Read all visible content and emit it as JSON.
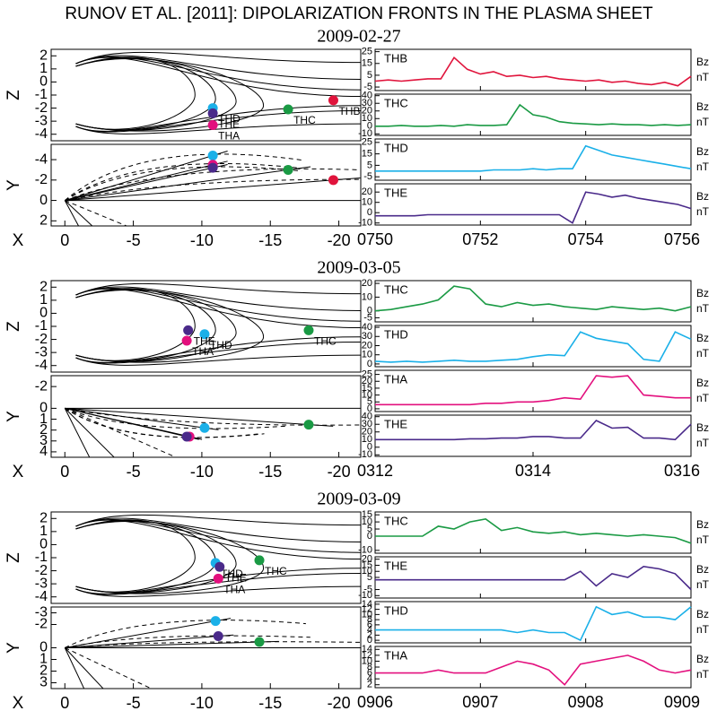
{
  "title": "RUNOV ET AL. [2011]: DIPOLARIZATION FRONTS IN THE PLASMA SHEET",
  "events": [
    {
      "date": "2009-02-27",
      "orbit_xz": {
        "type": "scatter",
        "ylabel": "Z",
        "xlim": [
          1,
          -21.6
        ],
        "ylim": [
          -4.5,
          2.5
        ],
        "yticks": [
          2,
          1,
          0,
          -1,
          -2,
          -3,
          -4
        ],
        "points": [
          {
            "name": "THB",
            "color": "#e0143c",
            "x": -19.6,
            "y": -1.4
          },
          {
            "name": "THC",
            "color": "#1a9a44",
            "x": -16.3,
            "y": -2.1
          },
          {
            "name": "THD",
            "color": "#1ab0e8",
            "x": -10.8,
            "y": -2.0
          },
          {
            "name": "THE",
            "color": "#4a2a8a",
            "x": -10.8,
            "y": -2.4
          },
          {
            "name": "THA",
            "color": "#e3107e",
            "x": -10.8,
            "y": -3.3
          }
        ]
      },
      "orbit_xy": {
        "type": "scatter",
        "ylabel": "Y",
        "xlabel": "X",
        "xlim": [
          1,
          -21.6
        ],
        "ylim": [
          2.5,
          -5.5
        ],
        "yticks": [
          -4,
          -2,
          0,
          2
        ],
        "xticks": [
          0,
          -5,
          -10,
          -15,
          -20
        ],
        "points": [
          {
            "color": "#1ab0e8",
            "x": -10.8,
            "y": -4.4
          },
          {
            "color": "#e3107e",
            "x": -10.8,
            "y": -3.5
          },
          {
            "color": "#4a2a8a",
            "x": -10.8,
            "y": -3.2
          },
          {
            "color": "#1a9a44",
            "x": -16.3,
            "y": -3.0
          },
          {
            "color": "#e0143c",
            "x": -19.6,
            "y": -2.0
          }
        ]
      },
      "timeseries": {
        "type": "line",
        "ylabel": "Bz",
        "yunit": "nT",
        "xlim": [
          470,
          476
        ],
        "xticks": [
          {
            "value": 470,
            "label": "0750"
          },
          {
            "value": 472,
            "label": "0752"
          },
          {
            "value": 474,
            "label": "0754"
          },
          {
            "value": 476,
            "label": "0756"
          }
        ],
        "x": [
          470,
          470.25,
          470.5,
          470.75,
          471,
          471.25,
          471.5,
          471.75,
          472,
          472.25,
          472.5,
          472.75,
          473,
          473.25,
          473.5,
          473.75,
          474,
          474.25,
          474.5,
          474.75,
          475,
          475.25,
          475.5,
          475.75,
          476
        ],
        "series": [
          {
            "name": "THB",
            "color": "#e0143c",
            "ylim": [
              -8,
              27
            ],
            "yticks": [
              -5,
              5,
              15,
              25
            ],
            "values": [
              0,
              1,
              0,
              1,
              2,
              2,
              20,
              10,
              6,
              8,
              4,
              5,
              3,
              4,
              2,
              1,
              0,
              1,
              -1,
              0,
              -2,
              -3,
              -1,
              -4,
              4
            ]
          },
          {
            "name": "THC",
            "color": "#1a9a44",
            "ylim": [
              -12,
              42
            ],
            "yticks": [
              -10,
              0,
              10,
              20,
              30,
              40
            ],
            "values": [
              0,
              0,
              1,
              0,
              0,
              1,
              0,
              2,
              1,
              1,
              2,
              28,
              15,
              12,
              6,
              4,
              3,
              2,
              3,
              2,
              2,
              1,
              2,
              1,
              2
            ]
          },
          {
            "name": "THD",
            "color": "#1ab0e8",
            "ylim": [
              -8,
              28
            ],
            "yticks": [
              -5,
              5,
              15,
              25
            ],
            "values": [
              0,
              0,
              0,
              0,
              0,
              0,
              0,
              0,
              0,
              1,
              1,
              1,
              2,
              1,
              2,
              2,
              22,
              18,
              14,
              12,
              10,
              8,
              6,
              4,
              2
            ]
          },
          {
            "name": "THE",
            "color": "#4a2a8a",
            "ylim": [
              -12,
              28
            ],
            "yticks": [
              -10,
              0,
              10,
              20
            ],
            "values": [
              -3,
              -3,
              -3,
              -3,
              -2,
              -2,
              -2,
              -2,
              -2,
              -2,
              -2,
              -2,
              -2,
              -2,
              -2,
              -10,
              20,
              18,
              15,
              17,
              14,
              12,
              10,
              8,
              4
            ]
          }
        ]
      }
    },
    {
      "date": "2009-03-05",
      "orbit_xz": {
        "type": "scatter",
        "ylabel": "Z",
        "xlim": [
          1,
          -21.6
        ],
        "ylim": [
          -4.5,
          2.5
        ],
        "yticks": [
          2,
          1,
          0,
          -1,
          -2,
          -3,
          -4
        ],
        "points": [
          {
            "name": "THC",
            "color": "#1a9a44",
            "x": -17.8,
            "y": -1.3
          },
          {
            "name": "THD",
            "color": "#1ab0e8",
            "x": -10.2,
            "y": -1.6
          },
          {
            "name": "THE",
            "color": "#4a2a8a",
            "x": -9,
            "y": -1.3
          },
          {
            "name": "THA",
            "color": "#e3107e",
            "x": -8.9,
            "y": -2.1
          }
        ]
      },
      "orbit_xy": {
        "type": "scatter",
        "ylabel": "Y",
        "xlabel": "X",
        "xlim": [
          1,
          -21.6
        ],
        "ylim": [
          4.5,
          -3
        ],
        "yticks": [
          -2,
          0,
          1,
          2,
          3,
          4
        ],
        "xticks": [
          0,
          -5,
          -10,
          -15,
          -20
        ],
        "points": [
          {
            "color": "#1a9a44",
            "x": -17.8,
            "y": 1.5
          },
          {
            "color": "#1ab0e8",
            "x": -10.2,
            "y": 1.8
          },
          {
            "color": "#e3107e",
            "x": -9.1,
            "y": 2.6
          },
          {
            "color": "#4a2a8a",
            "x": -8.9,
            "y": 2.6
          }
        ]
      },
      "timeseries": {
        "type": "line",
        "ylabel": "Bz",
        "yunit": "nT",
        "xlim": [
          192,
          196
        ],
        "xticks": [
          {
            "value": 192,
            "label": "0312"
          },
          {
            "value": 194,
            "label": "0314"
          },
          {
            "value": 196,
            "label": "0316"
          }
        ],
        "x": [
          192,
          192.2,
          192.4,
          192.6,
          192.8,
          193,
          193.2,
          193.4,
          193.6,
          193.8,
          194,
          194.2,
          194.4,
          194.6,
          194.8,
          195,
          195.2,
          195.4,
          195.6,
          195.8,
          196
        ],
        "series": [
          {
            "name": "THC",
            "color": "#1a9a44",
            "ylim": [
              -8,
              22
            ],
            "yticks": [
              -5,
              0,
              10,
              20
            ],
            "values": [
              0,
              1,
              3,
              5,
              8,
              18,
              16,
              5,
              3,
              6,
              4,
              5,
              3,
              2,
              1,
              3,
              2,
              1,
              2,
              0,
              3
            ]
          },
          {
            "name": "THD",
            "color": "#1ab0e8",
            "ylim": [
              -3,
              42
            ],
            "yticks": [
              0,
              10,
              20,
              30,
              40
            ],
            "values": [
              3,
              2,
              3,
              2,
              3,
              4,
              3,
              3,
              4,
              5,
              8,
              10,
              9,
              35,
              28,
              25,
              22,
              5,
              3,
              35,
              27
            ]
          },
          {
            "name": "THA",
            "color": "#e3107e",
            "ylim": [
              -2,
              28
            ],
            "yticks": [
              0,
              5,
              10,
              15,
              20,
              25
            ],
            "values": [
              3,
              3,
              3,
              3,
              3,
              3,
              3,
              4,
              4,
              5,
              5,
              6,
              8,
              7,
              24,
              23,
              24,
              10,
              9,
              8,
              8
            ]
          },
          {
            "name": "THE",
            "color": "#4a2a8a",
            "ylim": [
              -12,
              42
            ],
            "yticks": [
              -10,
              0,
              10,
              20,
              30,
              40
            ],
            "values": [
              10,
              10,
              10,
              10,
              10,
              10,
              11,
              11,
              12,
              12,
              14,
              14,
              12,
              12,
              35,
              25,
              26,
              12,
              12,
              10,
              30
            ]
          }
        ]
      }
    },
    {
      "date": "2009-03-09",
      "orbit_xz": {
        "type": "scatter",
        "ylabel": "Z",
        "xlim": [
          1,
          -21.6
        ],
        "ylim": [
          -4.5,
          2.5
        ],
        "yticks": [
          2,
          1,
          0,
          -1,
          -2,
          -3,
          -4
        ],
        "points": [
          {
            "name": "THC",
            "color": "#1a9a44",
            "x": -14.2,
            "y": -1.2
          },
          {
            "name": "THD",
            "color": "#1ab0e8",
            "x": -11,
            "y": -1.4
          },
          {
            "name": "THE",
            "color": "#4a2a8a",
            "x": -11.3,
            "y": -1.7
          },
          {
            "name": "THA",
            "color": "#e3107e",
            "x": -11.2,
            "y": -2.6
          }
        ]
      },
      "orbit_xy": {
        "type": "scatter",
        "ylabel": "Y",
        "xlabel": "X",
        "xlim": [
          1,
          -21.6
        ],
        "ylim": [
          3.5,
          -3.5
        ],
        "yticks": [
          -3,
          -2,
          0,
          1,
          2,
          3
        ],
        "xticks": [
          0,
          -5,
          -10,
          -15,
          -20
        ],
        "points": [
          {
            "color": "#1ab0e8",
            "x": -11,
            "y": -2.3
          },
          {
            "color": "#4a2a8a",
            "x": -11.2,
            "y": -1
          },
          {
            "color": "#1a9a44",
            "x": -14.2,
            "y": -0.5
          }
        ]
      },
      "timeseries": {
        "type": "line",
        "ylabel": "Bz",
        "yunit": "nT",
        "xlim": [
          546,
          549
        ],
        "xticks": [
          {
            "value": 546,
            "label": "0906"
          },
          {
            "value": 547,
            "label": "0907"
          },
          {
            "value": 548,
            "label": "0908"
          },
          {
            "value": 549,
            "label": "0909"
          }
        ],
        "x": [
          546,
          546.15,
          546.3,
          546.45,
          546.6,
          546.75,
          546.9,
          547.05,
          547.2,
          547.35,
          547.5,
          547.65,
          547.8,
          547.95,
          548.1,
          548.25,
          548.4,
          548.55,
          548.7,
          548.85,
          549
        ],
        "series": [
          {
            "name": "THC",
            "color": "#1a9a44",
            "ylim": [
              -12,
              17
            ],
            "yticks": [
              -10,
              0,
              5,
              10,
              15
            ],
            "values": [
              0,
              0,
              0,
              0,
              7,
              5,
              10,
              12,
              4,
              6,
              3,
              2,
              3,
              1,
              2,
              1,
              0,
              1,
              0,
              -1,
              -5
            ]
          },
          {
            "name": "THE",
            "color": "#4a2a8a",
            "ylim": [
              -12,
              22
            ],
            "yticks": [
              -10,
              -5,
              5,
              10,
              15,
              20
            ],
            "values": [
              3,
              3,
              3,
              3,
              3,
              3,
              3,
              3,
              3,
              3,
              3,
              3,
              3,
              10,
              -2,
              8,
              5,
              14,
              12,
              8,
              -5
            ]
          },
          {
            "name": "THD",
            "color": "#1ab0e8",
            "ylim": [
              -1,
              15
            ],
            "yticks": [
              0,
              2,
              4,
              6,
              8,
              10,
              12,
              14
            ],
            "values": [
              4,
              4,
              4,
              4,
              4,
              4,
              4,
              4,
              4,
              3,
              4,
              3,
              3,
              0,
              13,
              10,
              11,
              9,
              9,
              8,
              13
            ]
          },
          {
            "name": "THA",
            "color": "#e3107e",
            "ylim": [
              1,
              15
            ],
            "yticks": [
              2,
              4,
              6,
              8,
              10,
              12,
              14
            ],
            "values": [
              6,
              6,
              6,
              6,
              7,
              6,
              6,
              6,
              8,
              10,
              9,
              7,
              2,
              9,
              10,
              11,
              12,
              10,
              7,
              6,
              7
            ]
          }
        ]
      }
    }
  ]
}
